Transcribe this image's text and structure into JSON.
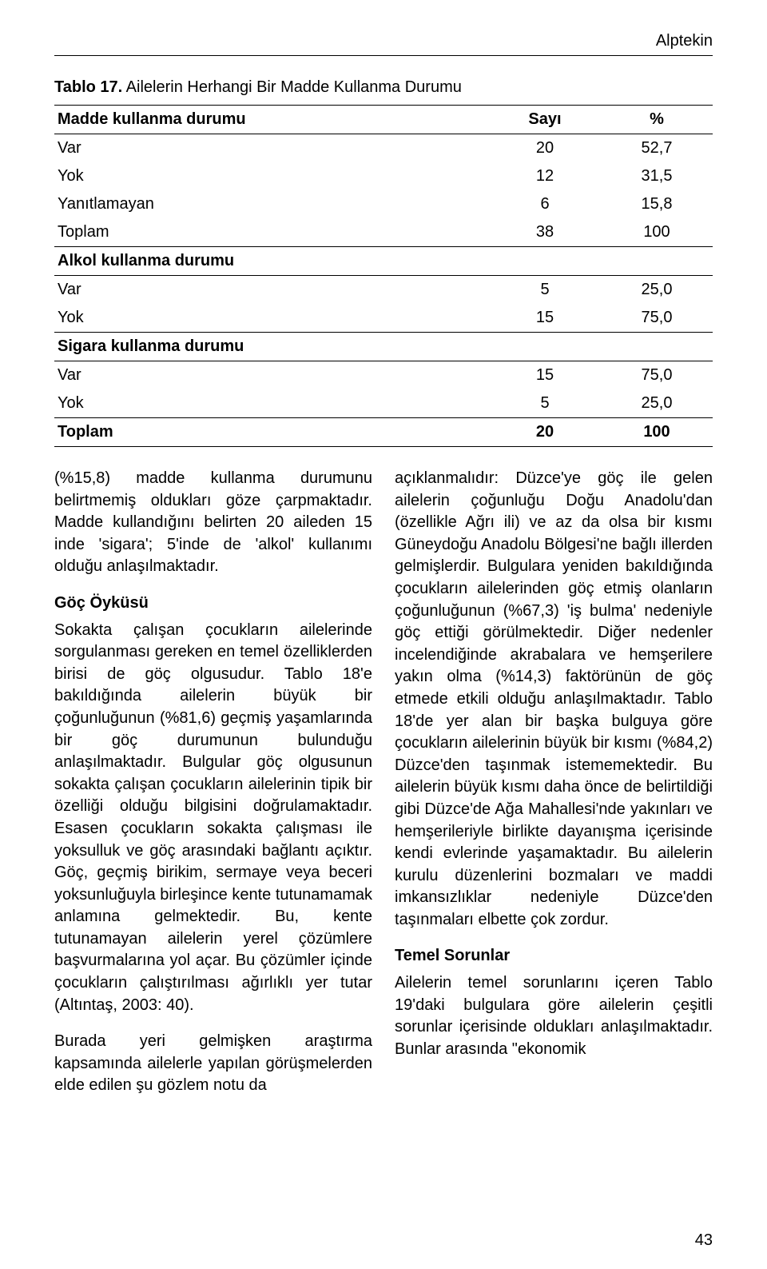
{
  "header": {
    "author": "Alptekin"
  },
  "table": {
    "caption_prefix": "Tablo 17.",
    "caption_rest": " Ailelerin Herhangi Bir Madde Kullanma Durumu",
    "col0": "Madde kullanma durumu",
    "col1": "Sayı",
    "col2": "%",
    "sec1_rows": [
      {
        "label": "Var",
        "n": "20",
        "p": "52,7"
      },
      {
        "label": "Yok",
        "n": "12",
        "p": "31,5"
      },
      {
        "label": "Yanıtlamayan",
        "n": "6",
        "p": "15,8"
      },
      {
        "label": "Toplam",
        "n": "38",
        "p": "100"
      }
    ],
    "sec2_title": "Alkol kullanma durumu",
    "sec2_rows": [
      {
        "label": "Var",
        "n": "5",
        "p": "25,0"
      },
      {
        "label": "Yok",
        "n": "15",
        "p": "75,0"
      }
    ],
    "sec3_title": "Sigara kullanma durumu",
    "sec3_rows": [
      {
        "label": "Var",
        "n": "15",
        "p": "75,0"
      },
      {
        "label": "Yok",
        "n": "5",
        "p": "25,0"
      }
    ],
    "total_row": {
      "label": "Toplam",
      "n": "20",
      "p": "100"
    }
  },
  "left": {
    "p1": "(%15,8) madde kullanma durumunu belirtmemiş oldukları göze çarpmaktadır. Madde kullandığını belirten 20 aileden 15 inde 'sigara'; 5'inde de 'alkol' kullanımı olduğu anlaşılmaktadır.",
    "h1": "Göç Öyküsü",
    "p2": "Sokakta çalışan çocukların ailelerinde sorgulanması gereken en temel özelliklerden birisi de göç olgusudur. Tablo 18'e bakıldığında ailelerin büyük bir çoğunluğunun (%81,6) geçmiş yaşamlarında bir göç durumunun bulunduğu anlaşılmaktadır. Bulgular göç olgusunun sokakta çalışan çocukların ailelerinin tipik bir özelliği olduğu bilgisini doğrulamaktadır. Esasen çocukların sokakta çalışması ile yoksulluk ve göç arasındaki bağlantı açıktır. Göç, geçmiş birikim, sermaye veya beceri yoksunluğuyla birleşince kente tutunamamak anlamına gelmektedir. Bu, kente tutunamayan ailelerin yerel çözümlere başvurmalarına yol açar. Bu çözümler içinde çocukların çalıştırılması ağırlıklı yer tutar (Altıntaş, 2003: 40).",
    "p3": "Burada yeri gelmişken araştırma kapsamında ailelerle yapılan görüşmelerden elde edilen şu gözlem notu da"
  },
  "right": {
    "p1": "açıklanmalıdır: Düzce'ye göç ile gelen ailelerin çoğunluğu Doğu Anadolu'dan (özellikle Ağrı ili) ve az da olsa bir kısmı Güneydoğu Anadolu Bölgesi'ne bağlı illerden gelmişlerdir. Bulgulara yeniden bakıldığında çocukların ailelerinden göç etmiş olanların çoğunluğunun (%67,3) 'iş bulma' nedeniyle göç ettiği görülmektedir. Diğer nedenler incelendiğinde akrabalara ve hemşerilere yakın olma (%14,3) faktörünün de göç etmede etkili olduğu anlaşılmaktadır. Tablo 18'de yer alan bir başka bulguya göre çocukların ailelerinin büyük bir kısmı (%84,2) Düzce'den taşınmak istememektedir. Bu ailelerin büyük kısmı daha önce de belirtildiği gibi Düzce'de Ağa Mahallesi'nde yakınları ve hemşerileriyle birlikte dayanışma içerisinde kendi evlerinde yaşamaktadır. Bu ailelerin kurulu düzenlerini bozmaları ve maddi imkansızlıklar nedeniyle Düzce'den taşınmaları elbette çok zordur.",
    "h1": "Temel Sorunlar",
    "p2": "Ailelerin temel sorunlarını içeren Tablo 19'daki bulgulara göre ailelerin çeşitli sorunlar içerisinde oldukları anlaşılmaktadır. Bunlar arasında \"ekonomik"
  },
  "page_number": "43"
}
